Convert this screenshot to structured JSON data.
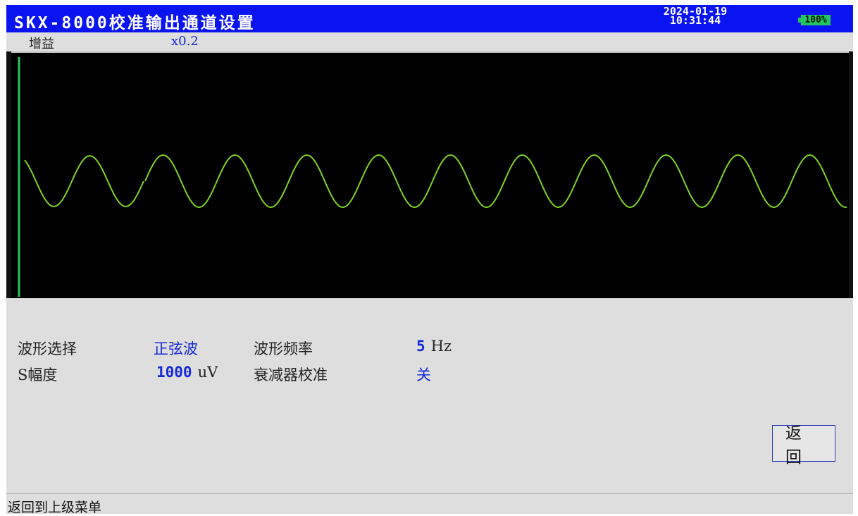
{
  "header": {
    "title": "SKX-8000校准输出通道设置",
    "date": "2024-01-19",
    "time": "10:31:44",
    "battery": "100%"
  },
  "gain": {
    "label": "增益",
    "value": "x0.2"
  },
  "scope": {
    "trace_color": "#7ed321",
    "cursor_color": "#22c55e"
  },
  "settings": {
    "waveform_label": "波形选择",
    "waveform_value": "正弦波",
    "frequency_label": "波形频率",
    "frequency_value": "5",
    "frequency_unit": "Hz",
    "amplitude_label": "S幅度",
    "amplitude_value": "1000",
    "amplitude_unit": "uV",
    "attenuator_label": "衰减器校准",
    "attenuator_value": "关"
  },
  "buttons": {
    "return_label": "返回"
  },
  "status": {
    "hint": "返回到上级菜单"
  }
}
